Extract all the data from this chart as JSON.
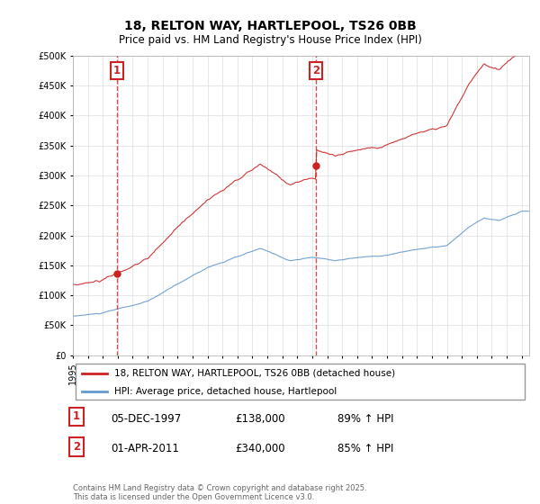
{
  "title_line1": "18, RELTON WAY, HARTLEPOOL, TS26 0BB",
  "title_line2": "Price paid vs. HM Land Registry's House Price Index (HPI)",
  "ylim": [
    0,
    500000
  ],
  "yticks": [
    0,
    50000,
    100000,
    150000,
    200000,
    250000,
    300000,
    350000,
    400000,
    450000,
    500000
  ],
  "hpi_color": "#6699cc",
  "price_color": "#cc2222",
  "vline_color": "#cc2222",
  "transaction1_date": 1997.92,
  "transaction1_price": 138000,
  "transaction1_label": "1",
  "transaction2_date": 2011.25,
  "transaction2_price": 340000,
  "transaction2_label": "2",
  "legend_price_label": "18, RELTON WAY, HARTLEPOOL, TS26 0BB (detached house)",
  "legend_hpi_label": "HPI: Average price, detached house, Hartlepool",
  "table_row1": [
    "1",
    "05-DEC-1997",
    "£138,000",
    "89% ↑ HPI"
  ],
  "table_row2": [
    "2",
    "01-APR-2011",
    "£340,000",
    "85% ↑ HPI"
  ],
  "footnote": "Contains HM Land Registry data © Crown copyright and database right 2025.\nThis data is licensed under the Open Government Licence v3.0.",
  "bg_color": "#ffffff",
  "grid_color": "#dddddd",
  "xmin": 1995,
  "xmax": 2025.5
}
